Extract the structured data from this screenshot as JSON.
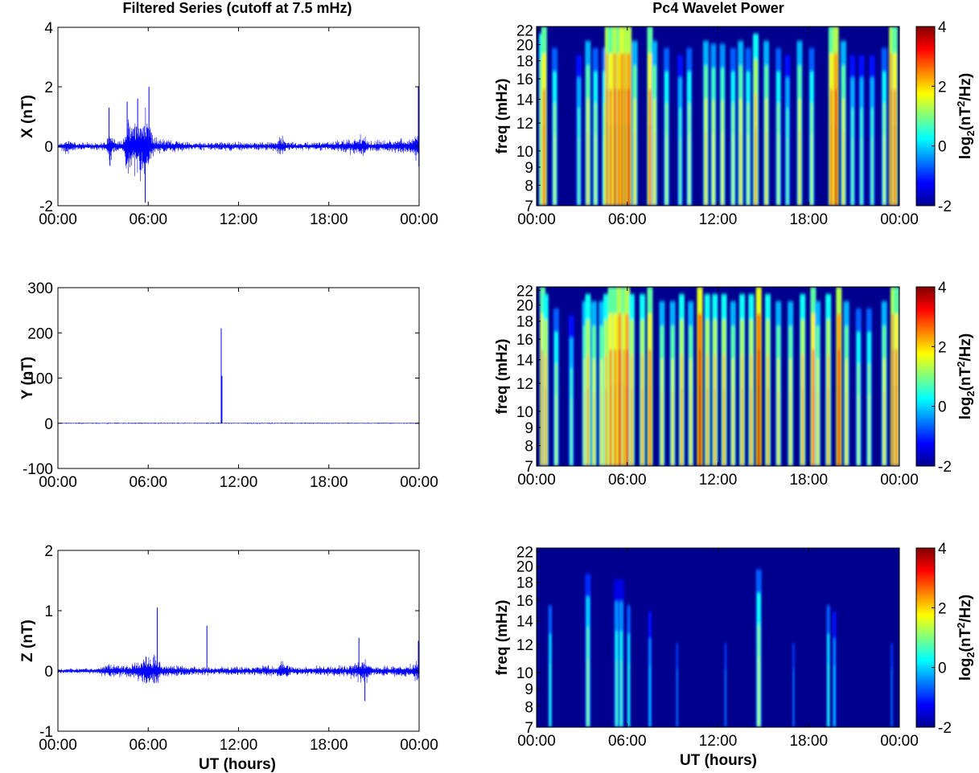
{
  "titles": {
    "left": "Filtered Series (cutoff at 7.5 mHz)",
    "right": "Pc4 Wavelet Power"
  },
  "x_label": "UT (hours)",
  "chart_data": [
    {
      "type": "line",
      "ylabel": "X (nT)",
      "x_ticks": [
        "00:00",
        "06:00",
        "12:00",
        "18:00",
        "00:00"
      ],
      "xlim_hours": [
        0,
        24
      ],
      "ylim": [
        -2,
        4
      ],
      "y_ticks": [
        -2,
        0,
        2,
        4
      ],
      "color": "#0000ff",
      "noise_envelope": [
        [
          0,
          0.12
        ],
        [
          0.7,
          0.35
        ],
        [
          1.2,
          0.12
        ],
        [
          3.2,
          0.15
        ],
        [
          3.4,
          0.7
        ],
        [
          3.8,
          0.2
        ],
        [
          4.3,
          0.2
        ],
        [
          4.6,
          1.3
        ],
        [
          5.0,
          0.8
        ],
        [
          5.3,
          1.4
        ],
        [
          5.6,
          1.1
        ],
        [
          5.9,
          1.5
        ],
        [
          6.1,
          0.9
        ],
        [
          6.4,
          0.3
        ],
        [
          7.5,
          0.25
        ],
        [
          9,
          0.12
        ],
        [
          11,
          0.18
        ],
        [
          13,
          0.15
        ],
        [
          14.5,
          0.2
        ],
        [
          14.8,
          0.45
        ],
        [
          15.2,
          0.15
        ],
        [
          18,
          0.15
        ],
        [
          20,
          0.35
        ],
        [
          20.3,
          0.5
        ],
        [
          20.6,
          0.2
        ],
        [
          23.6,
          0.3
        ],
        [
          24,
          0.8
        ]
      ],
      "spikes": [
        {
          "x": 6.05,
          "y": 2.0
        },
        {
          "x": 5.8,
          "y": -1.9
        },
        {
          "x": 5.3,
          "y": 1.6
        },
        {
          "x": 3.4,
          "y": 1.3
        },
        {
          "x": 4.6,
          "y": 1.5
        },
        {
          "x": 23.95,
          "y": 2.0
        }
      ]
    },
    {
      "type": "line",
      "ylabel": "Y (nT)",
      "x_ticks": [
        "00:00",
        "06:00",
        "12:00",
        "18:00",
        "00:00"
      ],
      "xlim_hours": [
        0,
        24
      ],
      "ylim": [
        -100,
        300
      ],
      "y_ticks": [
        -100,
        0,
        100,
        200,
        300
      ],
      "color": "#0000ff",
      "noise_envelope": [
        [
          0,
          1.5
        ],
        [
          24,
          1.5
        ]
      ],
      "spikes": [
        {
          "x": 10.85,
          "y": 210
        },
        {
          "x": 10.9,
          "y": 105
        }
      ]
    },
    {
      "type": "line",
      "ylabel": "Z (nT)",
      "x_ticks": [
        "00:00",
        "06:00",
        "12:00",
        "18:00",
        "00:00"
      ],
      "xlim_hours": [
        0,
        24
      ],
      "ylim": [
        -1,
        2
      ],
      "y_ticks": [
        -1,
        0,
        1,
        2
      ],
      "color": "#0000ff",
      "noise_envelope": [
        [
          0,
          0.05
        ],
        [
          2.5,
          0.05
        ],
        [
          3.5,
          0.15
        ],
        [
          4.5,
          0.1
        ],
        [
          5.5,
          0.25
        ],
        [
          6.2,
          0.3
        ],
        [
          7,
          0.12
        ],
        [
          10,
          0.07
        ],
        [
          14.5,
          0.1
        ],
        [
          15,
          0.2
        ],
        [
          15.5,
          0.07
        ],
        [
          19.5,
          0.12
        ],
        [
          20.2,
          0.25
        ],
        [
          21,
          0.08
        ],
        [
          23.5,
          0.12
        ],
        [
          24,
          0.3
        ]
      ],
      "spikes": [
        {
          "x": 6.6,
          "y": 1.05
        },
        {
          "x": 9.9,
          "y": 0.75
        },
        {
          "x": 20.0,
          "y": 0.55
        },
        {
          "x": 20.4,
          "y": -0.5
        },
        {
          "x": 23.95,
          "y": 0.5
        }
      ]
    },
    {
      "type": "heatmap",
      "ylabel": "freq (mHz)",
      "x_ticks": [
        "00:00",
        "06:00",
        "12:00",
        "18:00",
        "00:00"
      ],
      "xlim_hours": [
        0,
        24
      ],
      "y_ticks": [
        7,
        8,
        9,
        10,
        12,
        14,
        16,
        18,
        20,
        22
      ],
      "ylim": [
        7,
        22.5
      ],
      "y_scale": "log",
      "colorbar": {
        "label": "log2(nT2/Hz)",
        "ticks": [
          -2,
          0,
          2,
          4
        ],
        "range": [
          -2,
          4
        ]
      },
      "bursts": [
        [
          0.35,
          2.5
        ],
        [
          0.5,
          3
        ],
        [
          1.2,
          1.5
        ],
        [
          2.8,
          1
        ],
        [
          3.4,
          2
        ],
        [
          3.9,
          1.5
        ],
        [
          4.5,
          1.5
        ],
        [
          4.7,
          3.5
        ],
        [
          4.9,
          3
        ],
        [
          5.2,
          3.5
        ],
        [
          5.45,
          3.2
        ],
        [
          5.7,
          3.8
        ],
        [
          5.9,
          3.5
        ],
        [
          6.1,
          3.5
        ],
        [
          6.5,
          2
        ],
        [
          7.5,
          3
        ],
        [
          7.8,
          2
        ],
        [
          8.6,
          1.5
        ],
        [
          9.5,
          1
        ],
        [
          10.1,
          1.5
        ],
        [
          11.2,
          2
        ],
        [
          11.7,
          1.8
        ],
        [
          12.3,
          1.8
        ],
        [
          13.0,
          1.5
        ],
        [
          13.5,
          2
        ],
        [
          14,
          1.5
        ],
        [
          14.5,
          2.5
        ],
        [
          15.2,
          2
        ],
        [
          16.0,
          1.5
        ],
        [
          16.6,
          1
        ],
        [
          17.4,
          2
        ],
        [
          18.2,
          1.5
        ],
        [
          19.5,
          3
        ],
        [
          19.8,
          3.5
        ],
        [
          20.3,
          2
        ],
        [
          20.9,
          1
        ],
        [
          21.5,
          1
        ],
        [
          22.2,
          1
        ],
        [
          23.0,
          1.5
        ],
        [
          23.5,
          3.5
        ],
        [
          23.7,
          3
        ]
      ]
    },
    {
      "type": "heatmap",
      "ylabel": "freq (mHz)",
      "x_ticks": [
        "00:00",
        "06:00",
        "12:00",
        "18:00",
        "00:00"
      ],
      "xlim_hours": [
        0,
        24
      ],
      "y_ticks": [
        7,
        8,
        9,
        10,
        12,
        14,
        16,
        18,
        20,
        22
      ],
      "ylim": [
        7,
        22.5
      ],
      "y_scale": "log",
      "colorbar": {
        "label": "log2(nT2/Hz)",
        "ticks": [
          -2,
          0,
          2,
          4
        ],
        "range": [
          -2,
          4
        ]
      },
      "bursts": [
        [
          0.4,
          3
        ],
        [
          0.6,
          2.5
        ],
        [
          1.3,
          1.5
        ],
        [
          2.3,
          1
        ],
        [
          3.2,
          2
        ],
        [
          3.4,
          2.5
        ],
        [
          3.8,
          2
        ],
        [
          4.3,
          2
        ],
        [
          4.6,
          2.5
        ],
        [
          4.9,
          3
        ],
        [
          5.2,
          3
        ],
        [
          5.5,
          3.5
        ],
        [
          5.8,
          3
        ],
        [
          6.0,
          3.5
        ],
        [
          6.3,
          2.5
        ],
        [
          7.0,
          2.5
        ],
        [
          7.5,
          3
        ],
        [
          8.3,
          2
        ],
        [
          9.0,
          2
        ],
        [
          9.6,
          2.5
        ],
        [
          10.2,
          2
        ],
        [
          10.8,
          3.8
        ],
        [
          11.3,
          2.5
        ],
        [
          11.8,
          2.5
        ],
        [
          12.4,
          2.5
        ],
        [
          13.0,
          2
        ],
        [
          13.6,
          2.5
        ],
        [
          14.2,
          2.5
        ],
        [
          14.7,
          3.8
        ],
        [
          15.3,
          2.5
        ],
        [
          16.0,
          2
        ],
        [
          16.8,
          2
        ],
        [
          17.6,
          2.5
        ],
        [
          18.3,
          3
        ],
        [
          18.6,
          2
        ],
        [
          19.3,
          2.5
        ],
        [
          20.0,
          3.5
        ],
        [
          20.5,
          2
        ],
        [
          21.3,
          1.5
        ],
        [
          22.0,
          1.5
        ],
        [
          23.0,
          2
        ],
        [
          23.6,
          3.5
        ],
        [
          23.8,
          3
        ]
      ]
    },
    {
      "type": "heatmap",
      "ylabel": "freq (mHz)",
      "x_ticks": [
        "00:00",
        "06:00",
        "12:00",
        "18:00",
        "00:00"
      ],
      "xlim_hours": [
        0,
        24
      ],
      "y_ticks": [
        7,
        8,
        9,
        10,
        12,
        14,
        16,
        18,
        20,
        22
      ],
      "ylim": [
        7,
        22.5
      ],
      "y_scale": "log",
      "colorbar": {
        "label": "log2(nT2/Hz)",
        "ticks": [
          -2,
          0,
          2,
          4
        ],
        "range": [
          -2,
          4
        ]
      },
      "bursts": [
        [
          0.9,
          0.5
        ],
        [
          3.4,
          1.2
        ],
        [
          5.3,
          0.8
        ],
        [
          5.6,
          0.8
        ],
        [
          6.1,
          0.5
        ],
        [
          7.5,
          0
        ],
        [
          9.3,
          -0.5
        ],
        [
          12.5,
          -0.5
        ],
        [
          14.7,
          1.5
        ],
        [
          17.0,
          -0.5
        ],
        [
          19.3,
          0.5
        ],
        [
          19.7,
          0
        ],
        [
          23.5,
          -0.5
        ]
      ]
    }
  ]
}
